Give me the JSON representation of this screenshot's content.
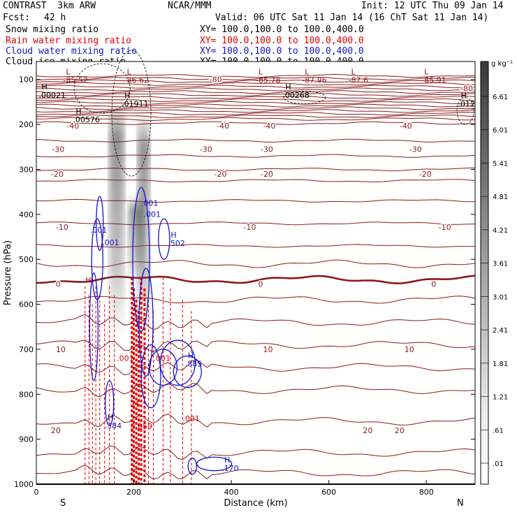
{
  "header": {
    "title_left": "CONTRAST  3km ARW",
    "center": "NCAR/MMM",
    "init": "Init: 12 UTC Thu 09 Jan 14",
    "fcst_label": "Fcst:",
    "fcst_value": "42 h",
    "valid": "Valid: 06 UTC Sat 11 Jan 14 (16 ChT Sat 11 Jan 14)"
  },
  "legend": [
    {
      "name": "Snow mixing ratio",
      "xy": "XY= 100.0,100.0 to 100.0,400.0",
      "color": "#000000"
    },
    {
      "name": "Rain water mixing ratio",
      "xy": "XY= 100.0,100.0 to 100.0,400.0",
      "color": "#e00000"
    },
    {
      "name": "Cloud water mixing ratio",
      "xy": "XY= 100.0,100.0 to 100.0,400.0",
      "color": "#1414c8"
    },
    {
      "name": "Cloud ice mixing ratio",
      "xy": "XY= 100.0,100.0 to 100.0,400.0",
      "color": "#000000"
    }
  ],
  "chart_data": {
    "type": "contour",
    "xlabel": "Distance (km)",
    "ylabel": "Pressure (hPa)",
    "xlim": [
      0,
      900
    ],
    "ylim": [
      1000,
      60
    ],
    "xticks": [
      0,
      200,
      400,
      600,
      800
    ],
    "yticks": [
      100,
      200,
      300,
      400,
      500,
      600,
      700,
      800,
      900,
      1000
    ],
    "x_end_labels": {
      "left": "S",
      "right": "N"
    },
    "colorbar": {
      "unit": "g kg⁻¹",
      "ticks": [
        "6.61",
        "6.01",
        "5.41",
        "4.81",
        "4.21",
        "3.61",
        "3.01",
        "2.41",
        "1.81",
        "1.21",
        ".61",
        ".01"
      ]
    },
    "temperature_contours": [
      {
        "label": "-80",
        "p": 112
      },
      {
        "label": "-40",
        "p": 197
      },
      {
        "label": "-30",
        "p": 236
      },
      {
        "label": "-20",
        "p": 270
      },
      {
        "label": "-10",
        "p": 325
      },
      {
        "label": "0",
        "p": 545
      },
      {
        "label": "10",
        "p": 690
      },
      {
        "label": "20",
        "p": 860
      }
    ],
    "temperature_labels": [
      {
        "text": "-80",
        "x": 355,
        "p": 100
      },
      {
        "text": "-80",
        "x": 870,
        "p": 120
      },
      {
        "text": "-40",
        "x": 62,
        "p": 203
      },
      {
        "text": "-40",
        "x": 370,
        "p": 203
      },
      {
        "text": "-40",
        "x": 465,
        "p": 203
      },
      {
        "text": "-40",
        "x": 745,
        "p": 203
      },
      {
        "text": "-30",
        "x": 32,
        "p": 255
      },
      {
        "text": "-30",
        "x": 335,
        "p": 255
      },
      {
        "text": "-30",
        "x": 460,
        "p": 255
      },
      {
        "text": "-30",
        "x": 765,
        "p": 255
      },
      {
        "text": "-20",
        "x": 30,
        "p": 310
      },
      {
        "text": "-20",
        "x": 365,
        "p": 310
      },
      {
        "text": "-20",
        "x": 460,
        "p": 310
      },
      {
        "text": "-20",
        "x": 785,
        "p": 310
      },
      {
        "text": "-10",
        "x": 40,
        "p": 428
      },
      {
        "text": "-10",
        "x": 425,
        "p": 428
      },
      {
        "text": "-10",
        "x": 825,
        "p": 428
      },
      {
        "text": "0",
        "x": 40,
        "p": 555
      },
      {
        "text": "0",
        "x": 455,
        "p": 555
      },
      {
        "text": "0",
        "x": 810,
        "p": 555
      },
      {
        "text": "10",
        "x": 40,
        "p": 700
      },
      {
        "text": "10",
        "x": 465,
        "p": 700
      },
      {
        "text": "10",
        "x": 755,
        "p": 700
      },
      {
        "text": "20",
        "x": 30,
        "p": 880
      },
      {
        "text": "20",
        "x": 670,
        "p": 880
      },
      {
        "text": "20",
        "x": 735,
        "p": 880
      }
    ],
    "extrema_labels": [
      {
        "mark": "L",
        "value": "-85.52",
        "x": 55,
        "p": 92,
        "color": "#8b1a1a"
      },
      {
        "mark": "L",
        "value": "-86.62",
        "x": 180,
        "p": 92,
        "color": "#8b1a1a"
      },
      {
        "mark": "L",
        "value": "-85.78",
        "x": 450,
        "p": 92,
        "color": "#8b1a1a"
      },
      {
        "mark": "L",
        "value": "-87.96",
        "x": 545,
        "p": 92,
        "color": "#8b1a1a"
      },
      {
        "mark": "L",
        "value": "-87.6",
        "x": 640,
        "p": 92,
        "color": "#8b1a1a"
      },
      {
        "mark": "L",
        "value": "-85.91",
        "x": 790,
        "p": 92,
        "color": "#8b1a1a"
      },
      {
        "mark": "H",
        "value": ".00021",
        "x": 5,
        "p": 125,
        "color": "#000000"
      },
      {
        "mark": "H",
        "value": ".00268",
        "x": 505,
        "p": 125,
        "color": "#000000"
      },
      {
        "mark": "H",
        "value": ".01911",
        "x": 175,
        "p": 145,
        "color": "#000000"
      },
      {
        "mark": "H",
        "value": ".00576",
        "x": 75,
        "p": 180,
        "color": "#000000"
      },
      {
        "mark": "H",
        "value": ".012",
        "x": 865,
        "p": 145,
        "color": "#000000"
      },
      {
        "mark": "",
        "value": ".001",
        "x": 215,
        "p": 365,
        "color": "#1414c8"
      },
      {
        "mark": "",
        "value": ".001",
        "x": 220,
        "p": 390,
        "color": "#1414c8"
      },
      {
        "mark": "",
        "value": ".001",
        "x": 110,
        "p": 425,
        "color": "#1414c8"
      },
      {
        "mark": "",
        "value": ".001",
        "x": 135,
        "p": 453,
        "color": "#1414c8"
      },
      {
        "mark": "H",
        "value": ".502",
        "x": 270,
        "p": 455,
        "color": "#1414c8"
      },
      {
        "mark": "H",
        "value": ".885",
        "x": 305,
        "p": 723,
        "color": "#1414c8"
      },
      {
        "mark": "H",
        "value": ".384",
        "x": 140,
        "p": 860,
        "color": "#1414c8"
      },
      {
        "mark": "H",
        "value": ".170",
        "x": 380,
        "p": 955,
        "color": "#1414c8"
      },
      {
        "mark": "",
        "value": ".001",
        "x": 165,
        "p": 710,
        "color": "#e00000"
      },
      {
        "mark": "",
        "value": ".001",
        "x": 240,
        "p": 710,
        "color": "#e00000"
      },
      {
        "mark": "",
        "value": ".001",
        "x": 300,
        "p": 845,
        "color": "#e00000"
      },
      {
        "mark": "",
        "value": "3.859",
        "x": 193,
        "p": 862,
        "color": "#e00000"
      },
      {
        "mark": "H",
        "value": "",
        "x": 95,
        "p": 555,
        "color": "#e00000"
      },
      {
        "mark": "H",
        "value": "",
        "x": 192,
        "p": 830,
        "color": "#e00000"
      }
    ]
  }
}
